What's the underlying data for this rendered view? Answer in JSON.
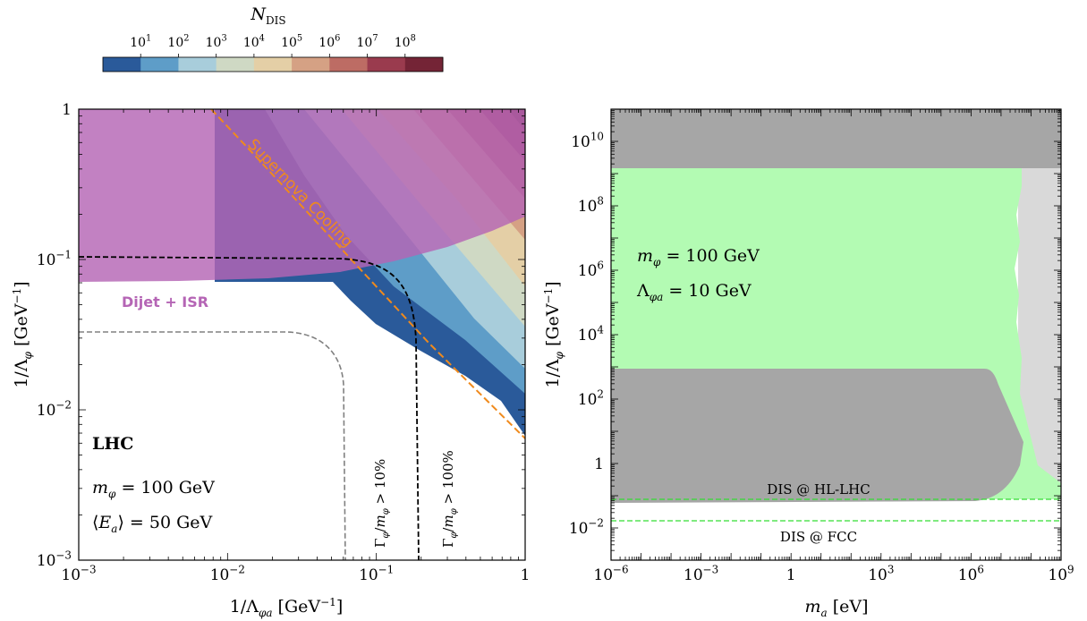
{
  "colorbar": {
    "title": "N_DIS",
    "ticks": [
      "10^1",
      "10^2",
      "10^3",
      "10^4",
      "10^5",
      "10^6",
      "10^7",
      "10^8"
    ],
    "colors": [
      "#2a5a9a",
      "#5e9dc8",
      "#a8cddb",
      "#cfd9c4",
      "#e4cfa6",
      "#d5a184",
      "#bd6c64",
      "#9a3b4e",
      "#742436"
    ]
  },
  "chart_data": [
    {
      "type": "area",
      "panel": "left",
      "xlabel": "1/Λ_φa [GeV^-1]",
      "ylabel": "1/Λ_φ [GeV^-1]",
      "xscale": "log",
      "yscale": "log",
      "xlim": [
        0.001,
        1
      ],
      "ylim": [
        0.001,
        1
      ],
      "x_ticks": [
        "10^-3",
        "10^-2",
        "10^-1",
        "1"
      ],
      "y_ticks": [
        "10^-3",
        "10^-2",
        "10^-1",
        "1"
      ],
      "regions": [
        {
          "name": "Dijet + ISR",
          "color": "#b565b5",
          "boundary": [
            [
              0.001,
              0.07
            ],
            [
              0.01,
              0.071
            ],
            [
              0.03,
              0.073
            ],
            [
              0.1,
              0.085
            ],
            [
              0.3,
              0.12
            ],
            [
              1,
              0.2
            ]
          ]
        },
        {
          "name": "N_DIS bands",
          "levels": [
            "10^1",
            "10^2",
            "10^3",
            "10^4",
            "10^5",
            "10^6",
            "10^7",
            "10^8"
          ],
          "lower_edge_10^1": [
            [
              0.045,
              0.07
            ],
            [
              0.07,
              0.04
            ],
            [
              0.1,
              0.028
            ],
            [
              0.3,
              0.014
            ],
            [
              1,
              0.007
            ]
          ]
        }
      ],
      "curves": [
        {
          "name": "Supernova Cooling",
          "color": "#f08a1c",
          "style": "dashed",
          "points": [
            [
              0.006,
              1
            ],
            [
              0.01,
              0.6
            ],
            [
              0.1,
              0.06
            ],
            [
              1,
              0.006
            ]
          ]
        },
        {
          "name": "Γ_φ/m_φ > 10%",
          "color": "#808080",
          "style": "dashed",
          "points": [
            [
              0.001,
              0.033
            ],
            [
              0.03,
              0.032
            ],
            [
              0.055,
              0.02
            ],
            [
              0.063,
              0.005
            ],
            [
              0.065,
              0.001
            ]
          ]
        },
        {
          "name": "Γ_φ/m_φ > 100%",
          "color": "#000000",
          "style": "dashed",
          "points": [
            [
              0.001,
              0.1
            ],
            [
              0.05,
              0.098
            ],
            [
              0.15,
              0.08
            ],
            [
              0.19,
              0.02
            ],
            [
              0.2,
              0.001
            ]
          ]
        }
      ],
      "annotations": [
        "Supernova Cooling",
        "Dijet + ISR",
        "LHC",
        "m_φ = 100 GeV",
        "⟨E_a⟩ = 50 GeV",
        "Γ_φ/m_φ > 10%",
        "Γ_φ/m_φ > 100%"
      ]
    },
    {
      "type": "area",
      "panel": "right",
      "xlabel": "m_a [eV]",
      "ylabel": "1/Λ_φ [GeV^-1]",
      "xscale": "log",
      "yscale": "log",
      "xlim": [
        1e-06,
        1000000000.0
      ],
      "ylim": [
        0.001,
        100000000000.0
      ],
      "x_ticks": [
        "10^-6",
        "10^-3",
        "1",
        "10^3",
        "10^6",
        "10^9"
      ],
      "y_ticks": [
        "10^-2",
        "1",
        "10^2",
        "10^4",
        "10^6",
        "10^8",
        "10^10"
      ],
      "regions": [
        {
          "name": "top excluded",
          "color": "#a6a6a6",
          "y_range": [
            1500000000.0,
            100000000000.0
          ]
        },
        {
          "name": "DIS reach",
          "color": "#b3fbb3",
          "y_range": [
            0.05,
            1500000000.0
          ],
          "x_max": 60000000.0
        },
        {
          "name": "light gray",
          "color": "#d9d9d9",
          "x_range": [
            60000000.0,
            1000000000.0
          ]
        },
        {
          "name": "bottom excluded",
          "color": "#a6a6a6",
          "y_range": [
            0.055,
            700
          ],
          "x_max": 30000000.0
        }
      ],
      "curves": [
        {
          "name": "DIS @ HL-LHC",
          "color": "#33dd33",
          "style": "dashed",
          "y": 0.055
        },
        {
          "name": "DIS @ FCC",
          "color": "#33dd33",
          "style": "dashed",
          "y": 0.016
        }
      ],
      "annotations": [
        "m_φ = 100 GeV",
        "Λ_φa = 10 GeV",
        "DIS @ HL-LHC",
        "DIS @ FCC"
      ]
    }
  ],
  "left_text": {
    "supernova": "Supernova Cooling",
    "dijet": "Dijet + ISR",
    "lhc": "LHC",
    "mphi": "m",
    "mphi_val": " = 100 GeV",
    "ea_val": " = 50 GeV",
    "width10": " > 10%",
    "width100": " > 100%"
  },
  "right_text": {
    "mphi_val": " = 100 GeV",
    "lam_val": " = 10 GeV",
    "hl": "DIS @ HL-LHC",
    "fcc": "DIS @ FCC"
  }
}
